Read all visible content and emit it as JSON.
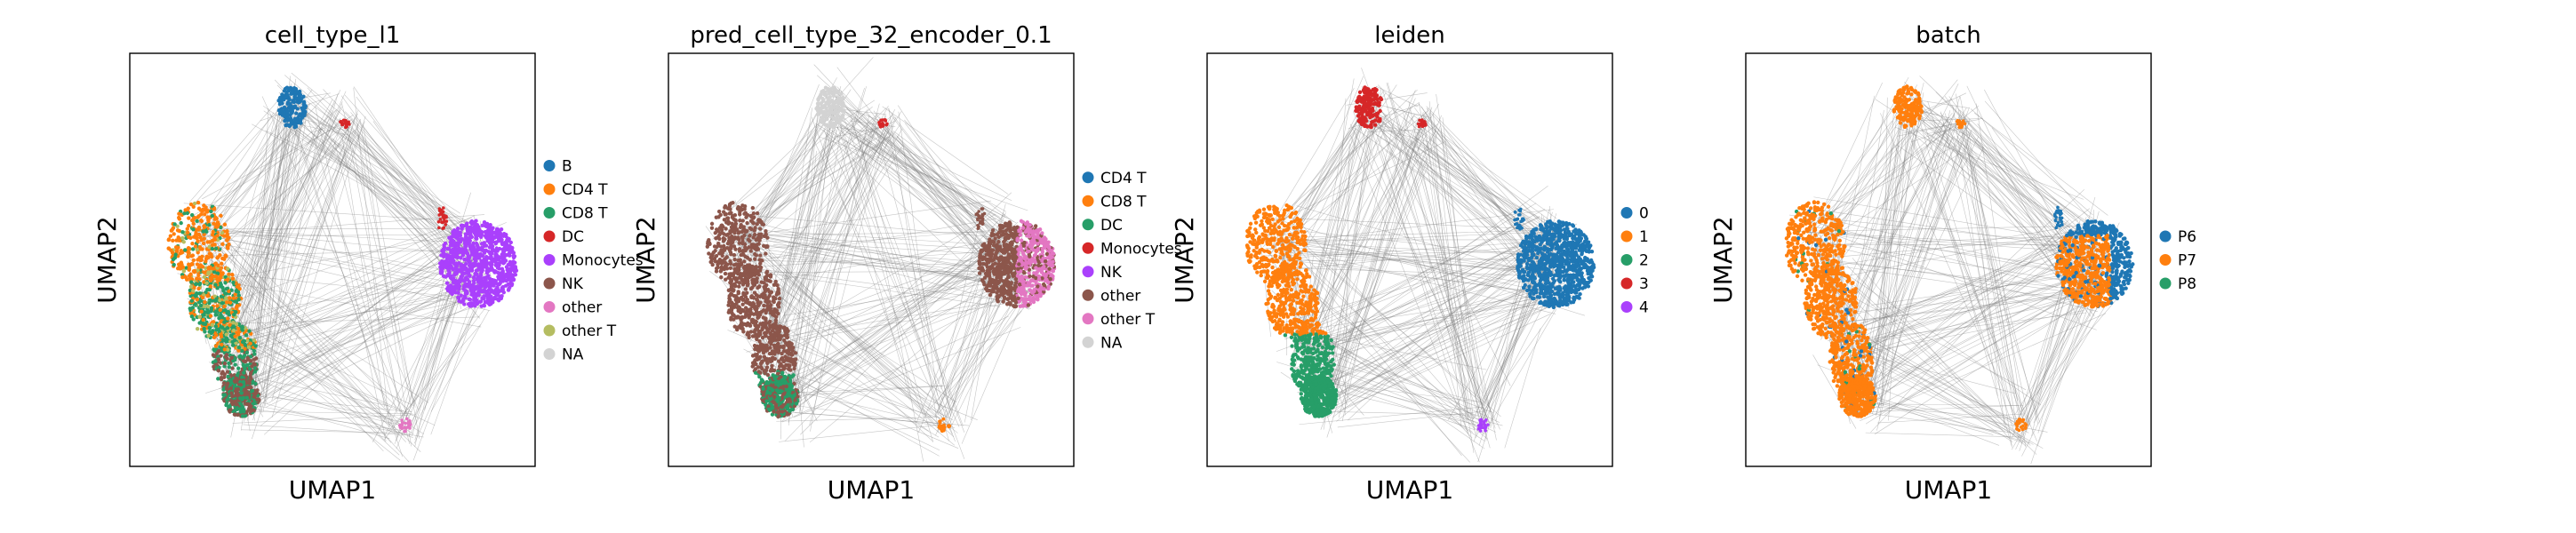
{
  "chart_data": [
    {
      "type": "scatter",
      "title": "cell_type_l1",
      "xlabel": "UMAP1",
      "ylabel": "UMAP2",
      "grid": false,
      "legend_position": "right",
      "series": [
        {
          "name": "B",
          "color": "#1f77b4"
        },
        {
          "name": "CD4 T",
          "color": "#ff7f0e"
        },
        {
          "name": "CD8 T",
          "color": "#279e68"
        },
        {
          "name": "DC",
          "color": "#d62728"
        },
        {
          "name": "Monocytes",
          "color": "#aa40fc"
        },
        {
          "name": "NK",
          "color": "#8c564b"
        },
        {
          "name": "other",
          "color": "#e377c2"
        },
        {
          "name": "other T",
          "color": "#b5bd61"
        },
        {
          "name": "NA",
          "color": "#d3d3d3"
        }
      ]
    },
    {
      "type": "scatter",
      "title": "pred_cell_type_32_encoder_0.1",
      "xlabel": "UMAP1",
      "ylabel": "UMAP2",
      "grid": false,
      "legend_position": "right",
      "series": [
        {
          "name": "CD4 T",
          "color": "#1f77b4"
        },
        {
          "name": "CD8 T",
          "color": "#ff7f0e"
        },
        {
          "name": "DC",
          "color": "#279e68"
        },
        {
          "name": "Monocytes",
          "color": "#d62728"
        },
        {
          "name": "NK",
          "color": "#aa40fc"
        },
        {
          "name": "other",
          "color": "#8c564b"
        },
        {
          "name": "other T",
          "color": "#e377c2"
        },
        {
          "name": "NA",
          "color": "#d3d3d3"
        }
      ]
    },
    {
      "type": "scatter",
      "title": "leiden",
      "xlabel": "UMAP1",
      "ylabel": "UMAP2",
      "grid": false,
      "legend_position": "right",
      "series": [
        {
          "name": "0",
          "color": "#1f77b4"
        },
        {
          "name": "1",
          "color": "#ff7f0e"
        },
        {
          "name": "2",
          "color": "#279e68"
        },
        {
          "name": "3",
          "color": "#d62728"
        },
        {
          "name": "4",
          "color": "#aa40fc"
        }
      ]
    },
    {
      "type": "scatter",
      "title": "batch",
      "xlabel": "UMAP1",
      "ylabel": "UMAP2",
      "grid": false,
      "legend_position": "right",
      "series": [
        {
          "name": "P6",
          "color": "#1f77b4"
        },
        {
          "name": "P7",
          "color": "#ff7f0e"
        },
        {
          "name": "P8",
          "color": "#279e68"
        }
      ]
    }
  ]
}
